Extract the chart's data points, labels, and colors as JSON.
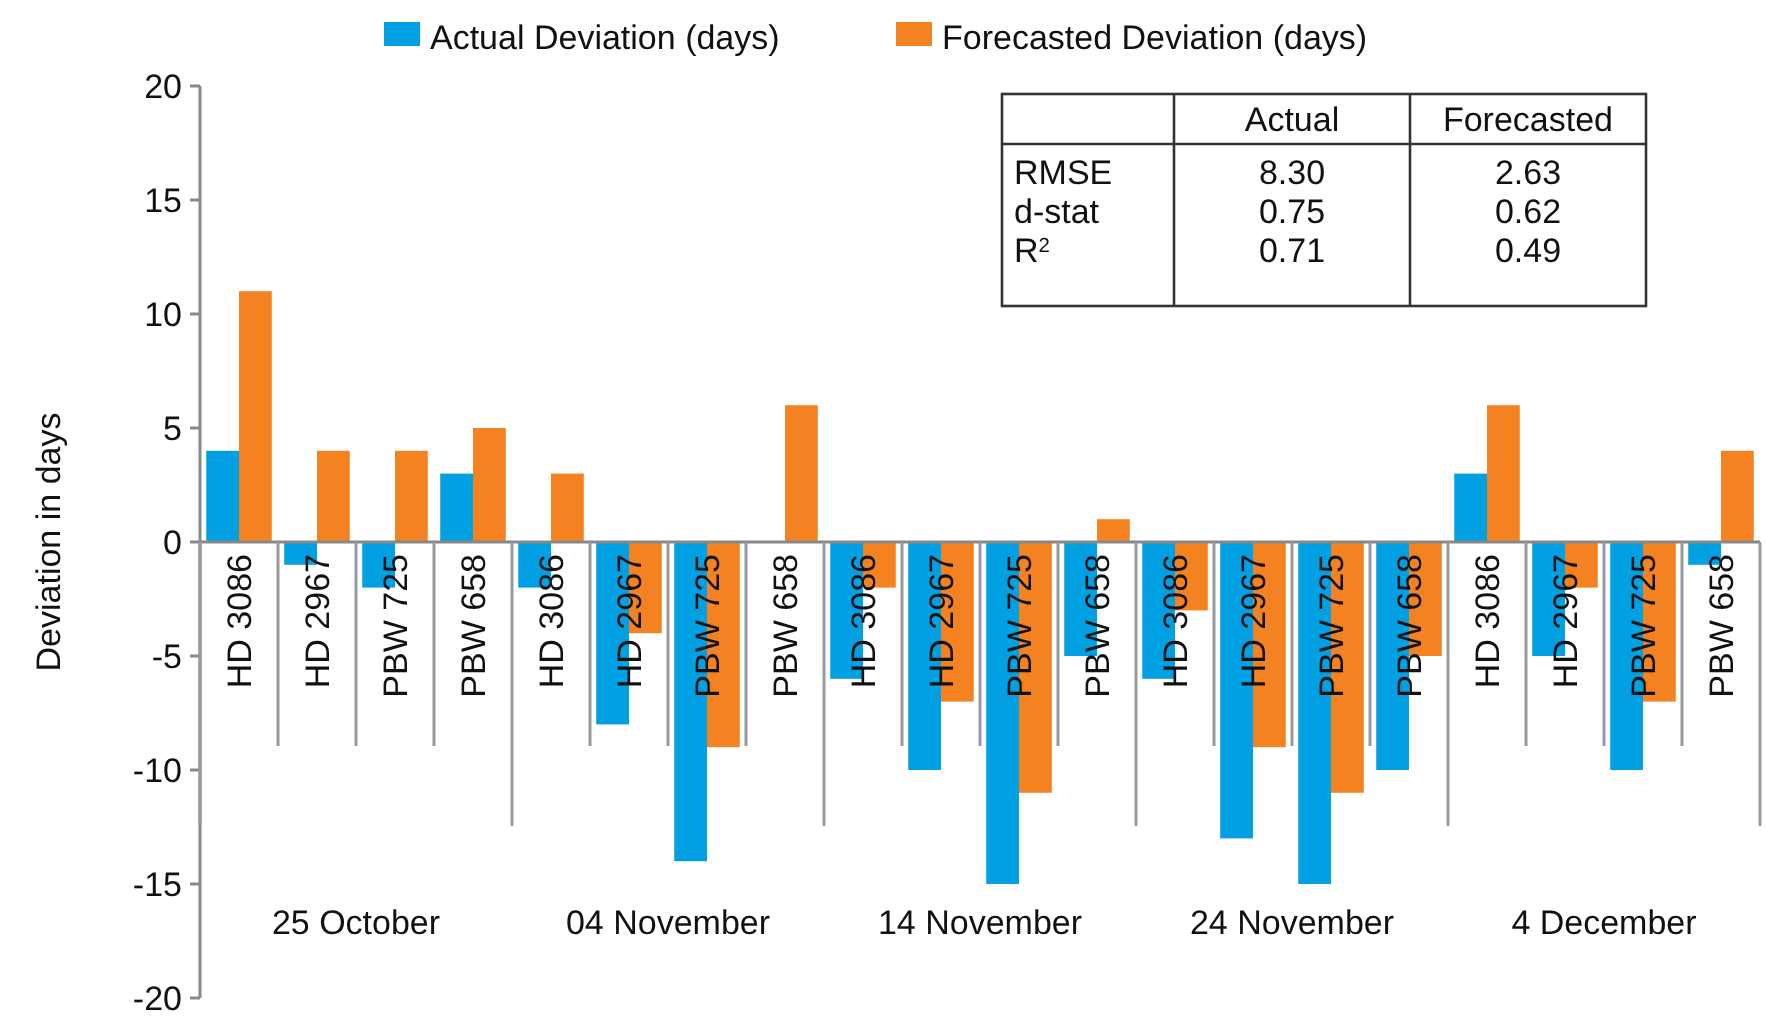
{
  "chart_data": [
    {
      "type": "bar",
      "ylabel": "Deviation in days",
      "categories": [
        "HD 3086",
        "HD 2967",
        "PBW 725",
        "PBW 658",
        "HD 3086",
        "HD 2967",
        "PBW 725",
        "PBW 658",
        "HD 3086",
        "HD 2967",
        "PBW 725",
        "PBW 658",
        "HD 3086",
        "HD 2967",
        "PBW 725",
        "PBW 658",
        "HD 3086",
        "HD 2967",
        "PBW 725",
        "PBW 658"
      ],
      "series": [
        {
          "name": "Actual Deviation (days)",
          "color": "#00a0e3",
          "values": [
            4,
            -1,
            -2,
            3,
            -2,
            -8,
            -14,
            0,
            -6,
            -10,
            -15,
            -5,
            -6,
            -13,
            -15,
            -10,
            3,
            -5,
            -10,
            -1
          ]
        },
        {
          "name": "Forecasted Deviation (days)",
          "color": "#f58220",
          "values": [
            11,
            4,
            4,
            5,
            3,
            -4,
            -9,
            6,
            -2,
            -7,
            -11,
            1,
            -3,
            -9,
            -11,
            -5,
            6,
            -2,
            -7,
            4
          ]
        }
      ],
      "annotations": [
        "25 October",
        "04 November",
        "14 November",
        "24 November",
        "4 December"
      ],
      "ylim": [
        -20,
        20
      ],
      "yticks": [
        -20,
        -15,
        -10,
        -5,
        0,
        5,
        10,
        15,
        20
      ],
      "grid": false,
      "legend": "top"
    },
    {
      "type": "other",
      "annotations": [
        "Actual",
        "Forecasted",
        "RMSE",
        "8.30",
        "2.63",
        "d-stat",
        "0.75",
        "0.62",
        "R$^{2}$",
        "0.71",
        "0.49"
      ]
    }
  ]
}
